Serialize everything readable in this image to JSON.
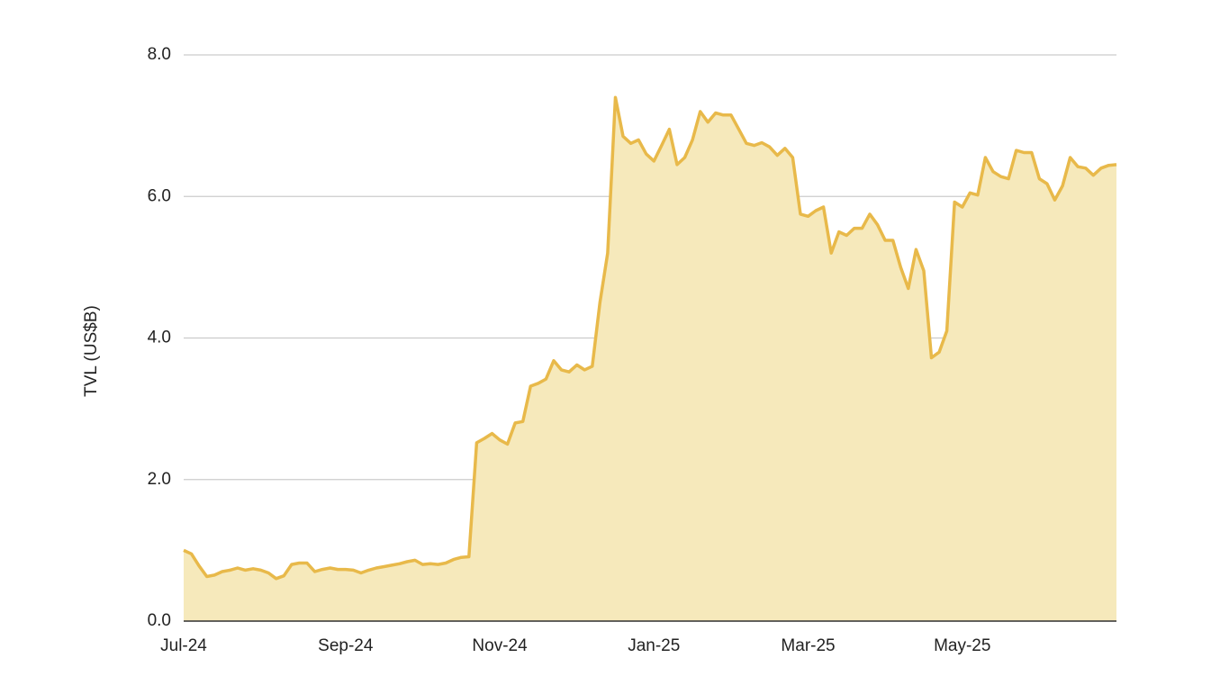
{
  "chart_data": {
    "type": "area",
    "y_label": "TVL (US$B)",
    "categories": [
      "Jul-24",
      null,
      null,
      null,
      null,
      null,
      null,
      null,
      null,
      null,
      null,
      null,
      null,
      null,
      null,
      null,
      null,
      null,
      null,
      null,
      null,
      "Sep-24",
      null,
      null,
      null,
      null,
      null,
      null,
      null,
      null,
      null,
      null,
      null,
      null,
      null,
      null,
      null,
      null,
      null,
      null,
      null,
      "Nov-24",
      null,
      null,
      null,
      null,
      null,
      null,
      null,
      null,
      null,
      null,
      null,
      null,
      null,
      null,
      null,
      null,
      null,
      null,
      null,
      "Jan-25",
      null,
      null,
      null,
      null,
      null,
      null,
      null,
      null,
      null,
      null,
      null,
      null,
      null,
      null,
      null,
      null,
      null,
      null,
      null,
      "Mar-25",
      null,
      null,
      null,
      null,
      null,
      null,
      null,
      null,
      null,
      null,
      null,
      null,
      null,
      null,
      null,
      null,
      null,
      null,
      null,
      "May-25",
      null,
      null,
      null,
      null,
      null,
      null,
      null,
      null,
      null,
      null,
      null,
      null,
      null,
      null,
      null,
      null,
      null,
      null,
      null,
      null
    ],
    "values": [
      1.0,
      0.95,
      0.78,
      0.63,
      0.65,
      0.7,
      0.72,
      0.75,
      0.72,
      0.74,
      0.72,
      0.68,
      0.6,
      0.64,
      0.8,
      0.82,
      0.82,
      0.7,
      0.73,
      0.75,
      0.73,
      0.73,
      0.72,
      0.68,
      0.72,
      0.75,
      0.77,
      0.79,
      0.81,
      0.84,
      0.86,
      0.8,
      0.81,
      0.8,
      0.82,
      0.87,
      0.9,
      0.91,
      2.52,
      2.58,
      2.65,
      2.56,
      2.5,
      2.8,
      2.82,
      3.32,
      3.36,
      3.42,
      3.68,
      3.55,
      3.52,
      3.62,
      3.55,
      3.6,
      4.5,
      5.2,
      7.4,
      6.85,
      6.75,
      6.8,
      6.6,
      6.5,
      6.72,
      6.95,
      6.45,
      6.55,
      6.8,
      7.2,
      7.05,
      7.18,
      7.15,
      7.15,
      6.95,
      6.75,
      6.72,
      6.76,
      6.7,
      6.58,
      6.68,
      6.55,
      5.75,
      5.72,
      5.8,
      5.85,
      5.2,
      5.5,
      5.45,
      5.55,
      5.55,
      5.75,
      5.6,
      5.38,
      5.38,
      5.0,
      4.7,
      5.25,
      4.95,
      3.72,
      3.8,
      4.1,
      5.92,
      5.85,
      6.05,
      6.02,
      6.55,
      6.35,
      6.28,
      6.25,
      6.65,
      6.62,
      6.62,
      6.25,
      6.18,
      5.95,
      6.15,
      6.55,
      6.42,
      6.4,
      6.3,
      6.4,
      6.44,
      6.45
    ],
    "color": "#e8b94a",
    "fill_color": "#f6e9bb",
    "ylim": [
      0,
      8
    ],
    "yticks": [
      {
        "value": 0,
        "label": "0.0"
      },
      {
        "value": 2,
        "label": "2.0"
      },
      {
        "value": 4,
        "label": "4.0"
      },
      {
        "value": 6,
        "label": "6.0"
      },
      {
        "value": 8,
        "label": "8.0"
      }
    ],
    "grid": true
  }
}
